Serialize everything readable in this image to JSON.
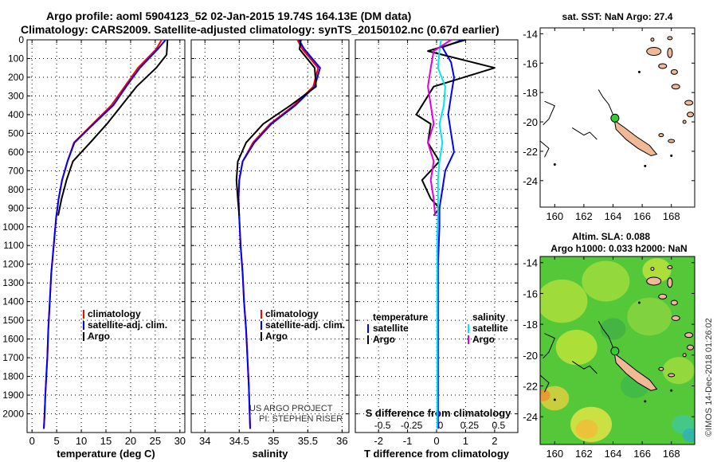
{
  "header": {
    "line1": "Argo profile: aoml 5904123_52 02-Jan-2015 19.74S 164.13E (DM data)",
    "line2": "Climatology: CARS2009. Satellite-adjusted climatology: synTS_20150102.nc (0.67d earlier)"
  },
  "credits": {
    "project": "US ARGO PROJECT",
    "pi": "PI: STEPHEN RISER",
    "imos": "©IMOS 14-Dec-2018 01:26:02"
  },
  "colors": {
    "climatology": "#ff0000",
    "satellite": "#0000ff",
    "argo": "#000000",
    "sat_salinity": "#00e5ee",
    "argo_salinity": "#e000e0"
  },
  "chart_data": [
    {
      "type": "line",
      "name": "temperature-panel",
      "xlabel": "temperature (deg C)",
      "ylabel": "",
      "xlim": [
        -1,
        31
      ],
      "ylim": [
        2100,
        0
      ],
      "xticks": [
        0,
        5,
        10,
        15,
        20,
        25,
        30
      ],
      "yticks": [
        0,
        100,
        200,
        300,
        400,
        500,
        600,
        700,
        800,
        900,
        1000,
        1100,
        1200,
        1300,
        1400,
        1500,
        1600,
        1700,
        1800,
        1900,
        2000
      ],
      "grid": true,
      "legend": "center-right",
      "series": [
        {
          "name": "climatology",
          "color": "#ff0000",
          "x": [
            26.3,
            25.2,
            21.5,
            18.8,
            16.1,
            12.3,
            8.5,
            7.2,
            6.1,
            5.4,
            4.9,
            4.4,
            3.9,
            3.6,
            3.3,
            3.1,
            2.9,
            2.7,
            2.55,
            2.4
          ],
          "y": [
            0,
            50,
            150,
            250,
            350,
            450,
            550,
            650,
            750,
            850,
            950,
            1100,
            1250,
            1400,
            1550,
            1700,
            1800,
            1900,
            2000,
            2080
          ]
        },
        {
          "name": "satellite-adj. clim.",
          "color": "#0000ff",
          "x": [
            27.1,
            25.5,
            21.9,
            19.1,
            16.5,
            12.5,
            8.6,
            7.2,
            6.1,
            5.4,
            4.9,
            4.4,
            3.9,
            3.6,
            3.3,
            3.1,
            2.9,
            2.7,
            2.55,
            2.4
          ],
          "y": [
            0,
            50,
            150,
            250,
            350,
            450,
            550,
            650,
            750,
            850,
            950,
            1100,
            1250,
            1400,
            1550,
            1700,
            1800,
            1900,
            2000,
            2080
          ]
        },
        {
          "name": "Argo",
          "color": "#000000",
          "x": [
            27.5,
            27.3,
            25.2,
            21.2,
            18.2,
            15.2,
            11.8,
            8.3,
            7.0,
            6.0,
            5.3
          ],
          "y": [
            0,
            80,
            150,
            250,
            350,
            450,
            550,
            650,
            750,
            850,
            940
          ]
        }
      ],
      "legend_entries": [
        "climatology",
        "satellite-adj. clim.",
        "Argo"
      ]
    },
    {
      "type": "line",
      "name": "salinity-panel",
      "xlabel": "salinity",
      "ylabel": "",
      "xlim": [
        33.8,
        36.1
      ],
      "ylim": [
        2100,
        0
      ],
      "xticks": [
        34,
        34.5,
        35,
        35.5,
        36
      ],
      "grid": true,
      "legend": "center-right",
      "series": [
        {
          "name": "climatology",
          "color": "#ff0000",
          "x": [
            35.35,
            35.42,
            35.65,
            35.58,
            35.3,
            34.95,
            34.7,
            34.55,
            34.5,
            34.49,
            34.5,
            34.52,
            34.55,
            34.57,
            34.6,
            34.62,
            34.64,
            34.66
          ],
          "y": [
            0,
            50,
            150,
            250,
            350,
            450,
            550,
            650,
            750,
            850,
            950,
            1100,
            1250,
            1400,
            1550,
            1700,
            1850,
            2080
          ]
        },
        {
          "name": "satellite-adj. clim.",
          "color": "#0000ff",
          "x": [
            35.37,
            35.45,
            35.68,
            35.6,
            35.32,
            34.97,
            34.72,
            34.55,
            34.5,
            34.49,
            34.5,
            34.52,
            34.55,
            34.57,
            34.6,
            34.62,
            34.64,
            34.66
          ],
          "y": [
            0,
            50,
            150,
            250,
            350,
            450,
            550,
            650,
            750,
            850,
            950,
            1100,
            1250,
            1400,
            1550,
            1700,
            1850,
            2080
          ]
        },
        {
          "name": "Argo",
          "color": "#000000",
          "x": [
            35.4,
            35.38,
            35.6,
            35.62,
            35.25,
            34.85,
            34.6,
            34.48,
            34.46,
            34.48,
            34.5
          ],
          "y": [
            0,
            50,
            150,
            250,
            350,
            450,
            550,
            650,
            750,
            850,
            940
          ]
        }
      ],
      "legend_entries": [
        "climatology",
        "satellite-adj. clim.",
        "Argo"
      ]
    },
    {
      "type": "line",
      "name": "difference-panel",
      "xlabel": "T difference from climatology",
      "xlabel_top": "S difference from climatology",
      "xlim": [
        -2.8,
        2.8
      ],
      "ylim": [
        2100,
        0
      ],
      "xticks": [
        -2,
        -1,
        0,
        1,
        2
      ],
      "xticks_salinity": [
        "-0.5",
        "-0.25",
        "0",
        "0.25",
        "0.5"
      ],
      "grid": true,
      "legend_left_title": "temperature",
      "legend_right_title": "salinity",
      "legend_entries": [
        "satellite",
        "Argo",
        "satellite",
        "Argo"
      ],
      "series": [
        {
          "name": "satellite",
          "color": "#0000ff",
          "x": [
            0.9,
            0.2,
            0.5,
            0.6,
            0.5,
            0.4,
            0.5,
            0.6,
            0.3,
            0.2,
            0.1,
            0.1,
            0.05,
            0.05,
            0.05,
            0.05,
            0.05,
            0.05
          ],
          "y": [
            0,
            40,
            120,
            200,
            300,
            400,
            500,
            600,
            700,
            800,
            900,
            1000,
            1200,
            1400,
            1600,
            1800,
            2000,
            2080
          ]
        },
        {
          "name": "Argo",
          "color": "#000000",
          "x": [
            1.0,
            -0.3,
            2.0,
            -0.1,
            -0.5,
            -0.7,
            -0.2,
            -0.3,
            0.1,
            -0.5,
            -0.2,
            0.1,
            -0.1
          ],
          "y": [
            0,
            60,
            150,
            250,
            350,
            400,
            450,
            550,
            650,
            750,
            850,
            900,
            940
          ]
        },
        {
          "name": "satellite",
          "color": "#00e5ee",
          "x": [
            0.15,
            0.1,
            0.05,
            0.3,
            0.25,
            0.1,
            0.2,
            0.1,
            0.05,
            0.05,
            0.02,
            0.02,
            0.02,
            0.02,
            0.02
          ],
          "y": [
            0,
            60,
            150,
            250,
            350,
            450,
            550,
            650,
            750,
            900,
            1100,
            1400,
            1700,
            1900,
            2080
          ]
        },
        {
          "name": "Argo",
          "color": "#e000e0",
          "x": [
            0.5,
            -0.1,
            -0.2,
            -0.3,
            -0.2,
            -0.1,
            -0.3,
            -0.1,
            -0.2,
            -0.1,
            -0.05
          ],
          "y": [
            0,
            60,
            150,
            250,
            350,
            450,
            550,
            650,
            750,
            850,
            940
          ]
        }
      ]
    },
    {
      "type": "map",
      "name": "sst-map",
      "title": "sat. SST: NaN Argo: 27.4",
      "xlim": [
        159,
        169.6
      ],
      "ylim": [
        -25.8,
        -13.6
      ],
      "xticks": [
        160,
        162,
        164,
        166,
        168
      ],
      "yticks": [
        -14,
        -16,
        -18,
        -20,
        -22,
        -24
      ],
      "marker": {
        "lon": 164.13,
        "lat": -19.74,
        "color": "#33cc33"
      }
    },
    {
      "type": "heatmap",
      "name": "sla-map",
      "title": "Altim. SLA: 0.088",
      "subtitle": "Argo h1000: 0.033 h2000: NaN",
      "xlim": [
        159,
        169.6
      ],
      "ylim": [
        -25.8,
        -13.6
      ],
      "xticks": [
        160,
        162,
        164,
        166,
        168
      ],
      "yticks": [
        -14,
        -16,
        -18,
        -20,
        -22,
        -24
      ],
      "marker": {
        "lon": 164.13,
        "lat": -19.74,
        "color": "#33cc33"
      }
    }
  ]
}
